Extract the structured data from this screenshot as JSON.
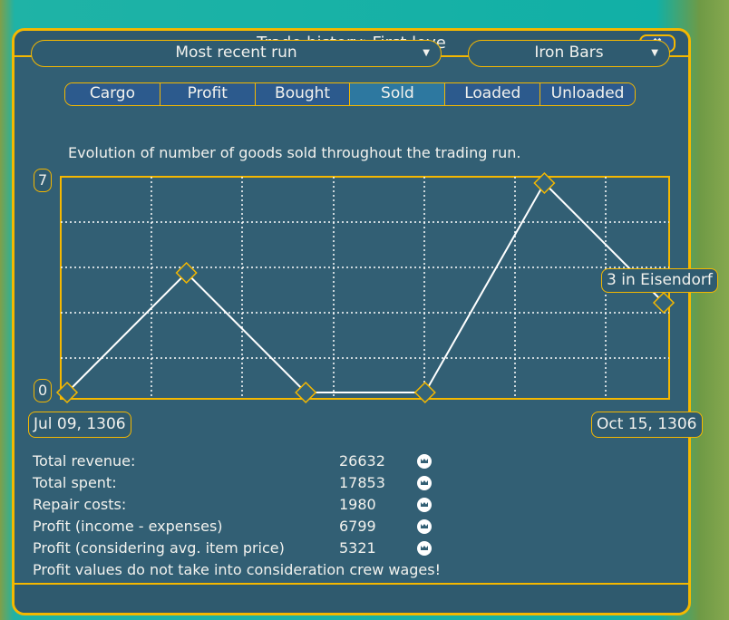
{
  "window": {
    "title": "Trade history: First love",
    "close_icon": "close-x-icon"
  },
  "run_select": {
    "value": "Most recent run"
  },
  "goods_select": {
    "value": "Iron Bars"
  },
  "tabs": [
    {
      "label": "Cargo"
    },
    {
      "label": "Profit"
    },
    {
      "label": "Bought"
    },
    {
      "label": "Sold",
      "active": true
    },
    {
      "label": "Loaded"
    },
    {
      "label": "Unloaded"
    }
  ],
  "description": "Evolution of number of goods sold throughout the trading run.",
  "chart_data": {
    "type": "line",
    "ylim": [
      0,
      7
    ],
    "y_max_label": "7",
    "y_min_label": "0",
    "x_start_label": "Jul 09, 1306",
    "x_end_label": "Oct 15, 1306",
    "values": [
      0,
      4,
      0,
      0,
      7,
      3
    ],
    "grid": true,
    "tooltip": "3 in Eisendorf",
    "line_color": "#ffffff",
    "border_color": "#f5b800"
  },
  "stats": [
    {
      "label": "Total revenue:",
      "value": "26632"
    },
    {
      "label": "Total spent:",
      "value": "17853"
    },
    {
      "label": "Repair costs:",
      "value": "1980"
    },
    {
      "label": "Profit (income - expenses)",
      "value": "6799"
    },
    {
      "label": "Profit (considering avg. item price)",
      "value": "5321"
    }
  ],
  "note": "Profit values do not take into consideration crew wages!",
  "currency_icon": "crown-coin-icon"
}
